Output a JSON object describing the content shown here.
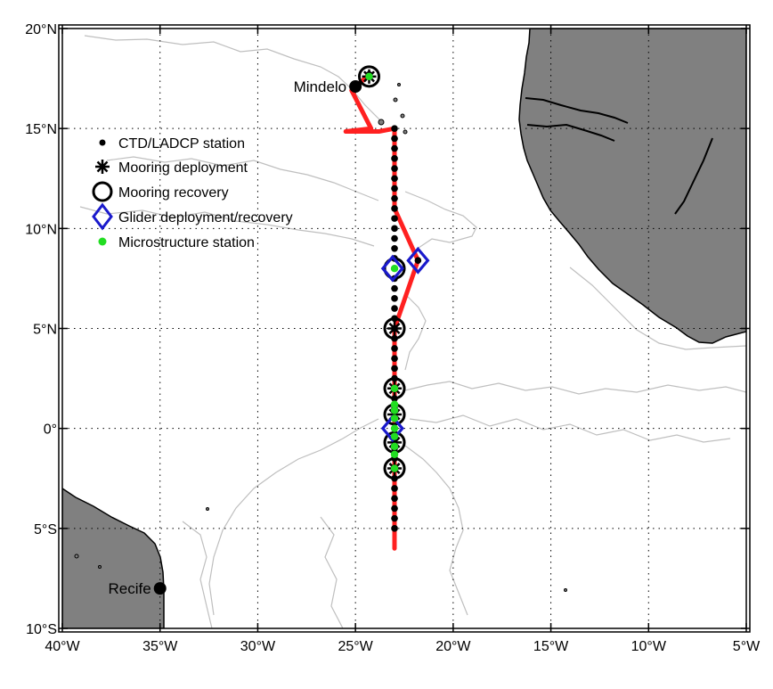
{
  "map": {
    "lon_range": [
      -40,
      -5
    ],
    "lat_range": [
      -10,
      20
    ],
    "x_ticks": [
      {
        "value": -40,
        "label": "40°W"
      },
      {
        "value": -35,
        "label": "35°W"
      },
      {
        "value": -30,
        "label": "30°W"
      },
      {
        "value": -25,
        "label": "25°W"
      },
      {
        "value": -20,
        "label": "20°W"
      },
      {
        "value": -15,
        "label": "15°W"
      },
      {
        "value": -10,
        "label": "10°W"
      },
      {
        "value": -5,
        "label": "5°W"
      }
    ],
    "y_ticks": [
      {
        "value": -10,
        "label": "10°S"
      },
      {
        "value": -5,
        "label": "5°S"
      },
      {
        "value": 0,
        "label": "0°"
      },
      {
        "value": 5,
        "label": "5°N"
      },
      {
        "value": 10,
        "label": "10°N"
      },
      {
        "value": 15,
        "label": "15°N"
      },
      {
        "value": 20,
        "label": "20°N"
      }
    ],
    "grid": "dotted",
    "colors": {
      "land": "#808080",
      "cruise_track": "#ff2020",
      "ctd_station": "#000000",
      "mooring": "#000000",
      "glider": "#1a1acc",
      "microstructure": "#22dd22",
      "bathymetry_contour": "#bfbfbf"
    },
    "cities": [
      {
        "name": "Mindelo",
        "lon": -25.0,
        "lat": 17.1
      },
      {
        "name": "Recife",
        "lon": -35.0,
        "lat": -8.0
      }
    ],
    "cruise_track": [
      [
        -24.3,
        17.7
      ],
      [
        -25.2,
        16.9
      ],
      [
        -24.2,
        15.0
      ],
      [
        -25.5,
        14.85
      ],
      [
        -23.8,
        14.85
      ],
      [
        -23.0,
        15.0
      ],
      [
        -23.0,
        11.0
      ],
      [
        -21.8,
        8.4
      ],
      [
        -23.0,
        5.0
      ],
      [
        -23.0,
        -6.0
      ]
    ],
    "ctd_stations": {
      "lon": -23.0,
      "lat_from": -5.0,
      "lat_to": 15.0,
      "step": 0.5,
      "extra": [
        [
          -24.3,
          17.7
        ],
        [
          -21.8,
          8.4
        ]
      ]
    },
    "mooring_deployments": [
      {
        "lon": -24.3,
        "lat": 17.6
      },
      {
        "lon": -23.0,
        "lat": 5.0
      },
      {
        "lon": -23.0,
        "lat": 2.0
      },
      {
        "lon": -23.0,
        "lat": 0.7
      },
      {
        "lon": -23.0,
        "lat": -0.7
      },
      {
        "lon": -23.0,
        "lat": -2.0
      }
    ],
    "mooring_recoveries": [
      {
        "lon": -24.3,
        "lat": 17.6
      },
      {
        "lon": -23.0,
        "lat": 8.0
      },
      {
        "lon": -23.0,
        "lat": 5.0
      },
      {
        "lon": -23.0,
        "lat": 2.0
      },
      {
        "lon": -23.0,
        "lat": 0.7
      },
      {
        "lon": -23.0,
        "lat": -0.7
      },
      {
        "lon": -23.0,
        "lat": -2.0
      }
    ],
    "glider_points": [
      {
        "lon": -23.1,
        "lat": 8.0
      },
      {
        "lon": -21.8,
        "lat": 8.4
      },
      {
        "lon": -23.1,
        "lat": 0.0
      }
    ],
    "microstructure_stations": [
      [
        -24.3,
        17.6
      ],
      [
        -23.0,
        8.0
      ],
      [
        -23.0,
        2.0
      ],
      [
        -23.0,
        1.2
      ],
      [
        -23.0,
        0.9
      ],
      [
        -23.0,
        0.5
      ],
      [
        -23.0,
        0.0
      ],
      [
        -23.0,
        -0.4
      ],
      [
        -23.0,
        -0.9
      ],
      [
        -23.0,
        -1.3
      ],
      [
        -23.0,
        -2.0
      ]
    ],
    "legend": {
      "items": [
        {
          "marker": "ctd",
          "label": "CTD/LADCP station"
        },
        {
          "marker": "mooring-deployment",
          "label": "Mooring deployment"
        },
        {
          "marker": "mooring-recovery",
          "label": "Mooring recovery"
        },
        {
          "marker": "glider",
          "label": "Glider deployment/recovery"
        },
        {
          "marker": "microstructure",
          "label": "Microstructure station"
        }
      ]
    }
  }
}
